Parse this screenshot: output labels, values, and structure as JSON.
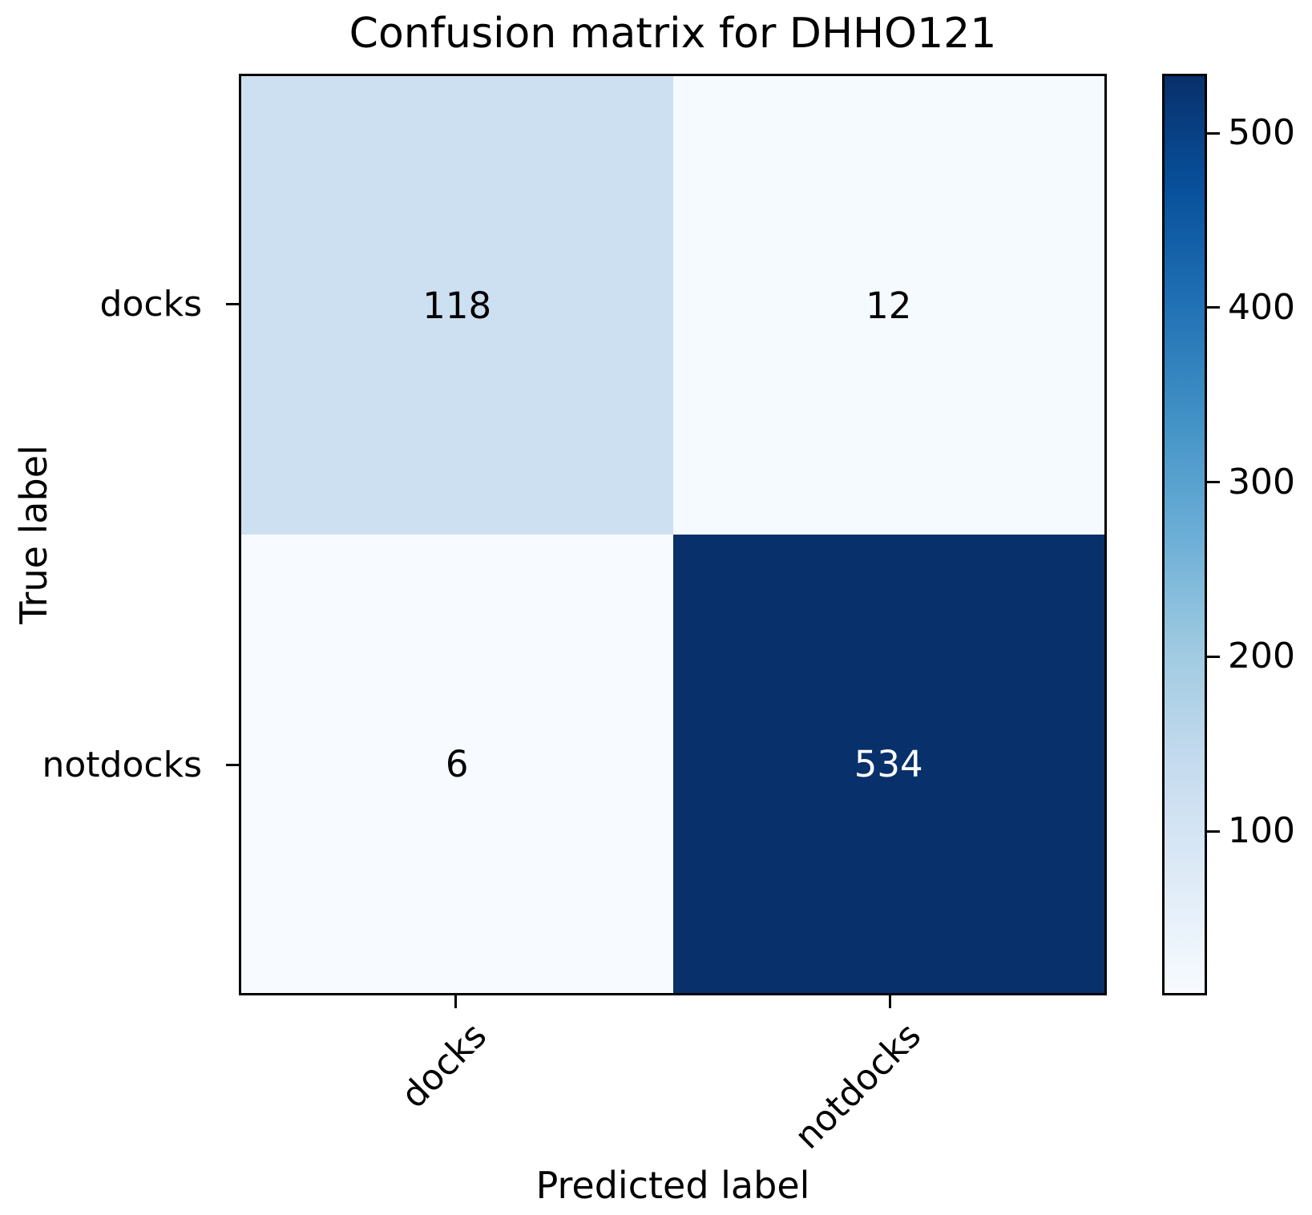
{
  "chart_data": {
    "type": "heatmap",
    "title": "Confusion matrix for DHHO121",
    "xlabel": "Predicted label",
    "ylabel": "True label",
    "x_categories": [
      "docks",
      "notdocks"
    ],
    "y_categories": [
      "docks",
      "notdocks"
    ],
    "matrix": [
      [
        118,
        12
      ],
      [
        6,
        534
      ]
    ],
    "vmin": 6,
    "vmax": 534,
    "grid": false,
    "colormap": {
      "name": "Blues",
      "stops": [
        {
          "pos": 0.0,
          "color": "#f7fbff"
        },
        {
          "pos": 0.125,
          "color": "#deebf7"
        },
        {
          "pos": 0.25,
          "color": "#c6dbef"
        },
        {
          "pos": 0.375,
          "color": "#9ecae1"
        },
        {
          "pos": 0.5,
          "color": "#6baed6"
        },
        {
          "pos": 0.625,
          "color": "#4292c6"
        },
        {
          "pos": 0.75,
          "color": "#2171b5"
        },
        {
          "pos": 0.875,
          "color": "#08519c"
        },
        {
          "pos": 1.0,
          "color": "#08306b"
        }
      ]
    },
    "cell_text_colors": {
      "light": "#000000",
      "dark": "#ffffff"
    },
    "colorbar": {
      "position": "right",
      "ticks": [
        100,
        200,
        300,
        400,
        500
      ]
    }
  }
}
